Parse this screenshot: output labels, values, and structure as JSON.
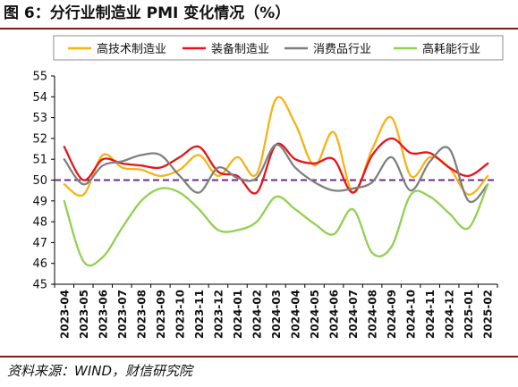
{
  "title": "图 6：分行业制造业 PMI 变化情况（%）",
  "source": "资料来源：WIND，财信研究院",
  "chart_data": {
    "type": "line",
    "title": "图 6：分行业制造业 PMI 变化情况（%）",
    "xlabel": "",
    "ylabel": "",
    "ylim": [
      45,
      55
    ],
    "yticks": [
      45,
      46,
      47,
      48,
      49,
      50,
      51,
      52,
      53,
      54,
      55
    ],
    "reference_line": {
      "value": 50,
      "color": "#6a2c8e",
      "style": "dashed"
    },
    "grid": false,
    "legend_position": "top",
    "categories": [
      "2023-04",
      "2023-05",
      "2023-06",
      "2023-07",
      "2023-08",
      "2023-09",
      "2023-10",
      "2023-11",
      "2023-12",
      "2024-01",
      "2024-02",
      "2024-03",
      "2024-04",
      "2024-05",
      "2024-06",
      "2024-07",
      "2024-08",
      "2024-09",
      "2024-10",
      "2024-11",
      "2024-12",
      "2025-01",
      "2025-02"
    ],
    "series": [
      {
        "name": "高技术制造业",
        "color": "#f5b316",
        "values": [
          49.8,
          49.3,
          51.2,
          50.6,
          50.5,
          50.2,
          50.5,
          51.2,
          50.2,
          51.1,
          50.3,
          53.9,
          52.7,
          50.7,
          52.3,
          49.4,
          51.5,
          53.0,
          50.2,
          51.1,
          50.6,
          49.3,
          50.2
        ]
      },
      {
        "name": "装备制造业",
        "color": "#e8141b",
        "values": [
          51.6,
          50.0,
          51.0,
          50.8,
          50.7,
          50.6,
          51.1,
          51.6,
          50.4,
          50.2,
          49.4,
          51.7,
          51.0,
          50.8,
          51.0,
          49.4,
          51.2,
          52.0,
          51.3,
          51.3,
          50.6,
          50.2,
          50.8
        ]
      },
      {
        "name": "消费品行业",
        "color": "#808080",
        "values": [
          51.0,
          49.8,
          50.7,
          50.9,
          51.2,
          51.2,
          50.2,
          49.4,
          50.6,
          50.1,
          50.1,
          51.7,
          50.6,
          49.9,
          49.5,
          49.6,
          49.9,
          51.1,
          49.5,
          50.9,
          51.5,
          49.0,
          49.8
        ]
      },
      {
        "name": "高耗能行业",
        "color": "#92d050",
        "values": [
          49.0,
          46.1,
          46.3,
          47.7,
          49.0,
          49.6,
          49.4,
          48.6,
          47.6,
          47.6,
          48.0,
          49.2,
          48.6,
          47.9,
          47.4,
          48.6,
          46.5,
          46.8,
          49.3,
          49.2,
          48.4,
          47.7,
          49.8
        ]
      }
    ]
  }
}
